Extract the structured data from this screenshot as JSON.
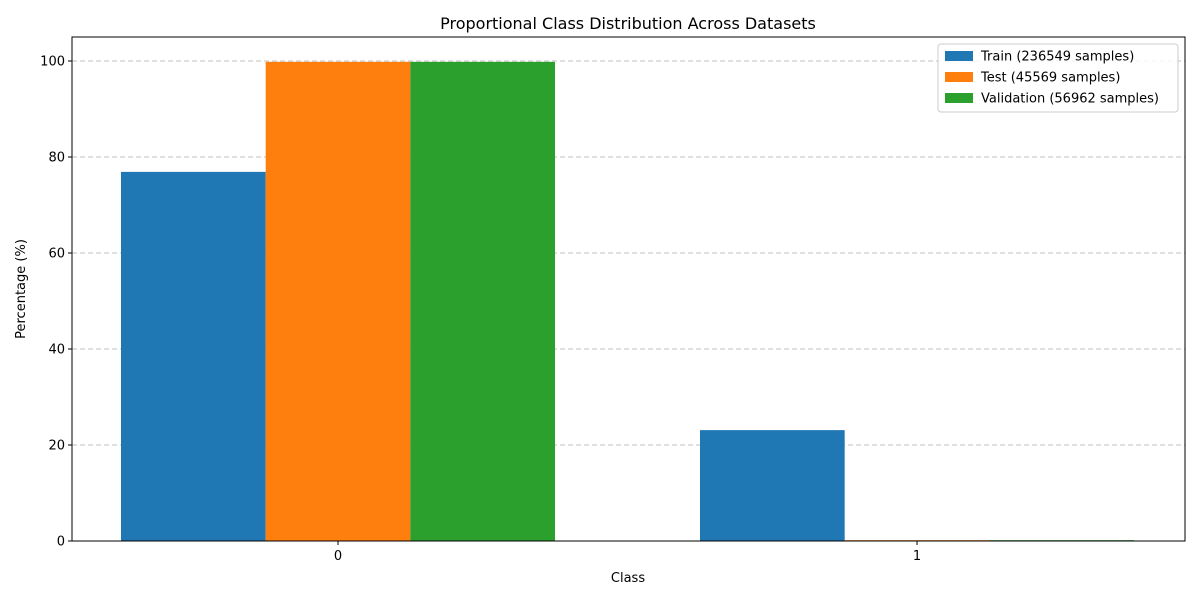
{
  "chart_data": {
    "type": "bar",
    "title": "Proportional Class Distribution Across Datasets",
    "xlabel": "Class",
    "ylabel": "Percentage (%)",
    "categories": [
      "0",
      "1"
    ],
    "series": [
      {
        "name": "Train (236549 samples)",
        "values": [
          76.9,
          23.1
        ],
        "color": "#1f77b4"
      },
      {
        "name": "Test (45569 samples)",
        "values": [
          99.83,
          0.17
        ],
        "color": "#ff7f0e"
      },
      {
        "name": "Validation (56962 samples)",
        "values": [
          99.83,
          0.17
        ],
        "color": "#2ca02c"
      }
    ],
    "ylim": [
      0,
      105
    ],
    "yticks": [
      0,
      20,
      40,
      60,
      80,
      100
    ],
    "grid": "y-dashed",
    "legend_position": "upper right"
  }
}
